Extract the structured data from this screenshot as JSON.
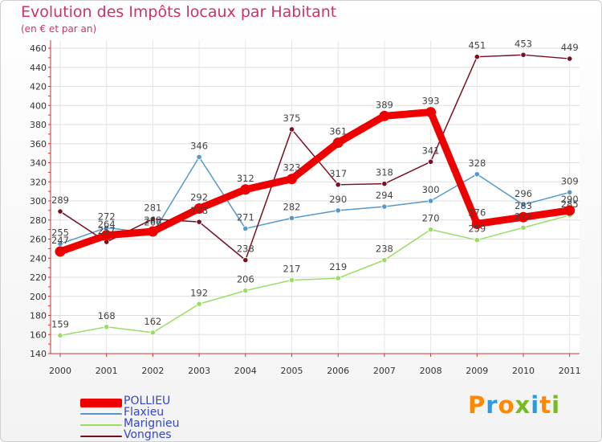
{
  "chart_data": {
    "type": "line",
    "title": "Evolution des Impôts locaux par Habitant",
    "subtitle": "(en € et par an)",
    "categories": [
      "2000",
      "2001",
      "2002",
      "2003",
      "2004",
      "2005",
      "2006",
      "2007",
      "2008",
      "2009",
      "2010",
      "2011"
    ],
    "ylim": [
      140,
      460
    ],
    "yticks": [
      140,
      160,
      180,
      200,
      220,
      240,
      260,
      280,
      300,
      320,
      340,
      360,
      380,
      400,
      420,
      440,
      460
    ],
    "series": [
      {
        "name": "POLLIEU",
        "color": "#ee0000",
        "values": [
          247,
          264,
          268,
          292,
          312,
          323,
          361,
          389,
          393,
          276,
          283,
          290
        ]
      },
      {
        "name": "Flaxieu",
        "color": "#5599cc",
        "values": [
          255,
          272,
          266,
          346,
          271,
          282,
          290,
          294,
          300,
          328,
          296,
          309
        ]
      },
      {
        "name": "Marignieu",
        "color": "#99dd66",
        "values": [
          159,
          168,
          162,
          192,
          206,
          217,
          219,
          238,
          270,
          259,
          272,
          285
        ]
      },
      {
        "name": "Vongnes",
        "color": "#771122",
        "values": [
          289,
          257,
          281,
          278,
          238,
          375,
          317,
          318,
          341,
          451,
          453,
          449
        ]
      }
    ]
  },
  "logo": {
    "text": "Proxiti",
    "colors": [
      "#ff8800",
      "#3399dd",
      "#ff8800",
      "#77bb22",
      "#3399dd",
      "#ff8800",
      "#77bb22"
    ]
  }
}
